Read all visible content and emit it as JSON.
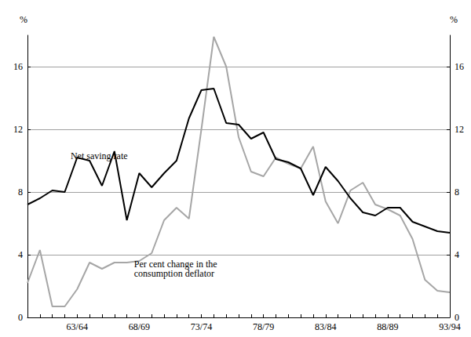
{
  "chart_data": {
    "type": "line",
    "categories": [
      null,
      null,
      null,
      null,
      "63/64",
      null,
      null,
      null,
      null,
      "68/69",
      null,
      null,
      null,
      null,
      "73/74",
      null,
      null,
      null,
      null,
      "78/79",
      null,
      null,
      null,
      null,
      "83/84",
      null,
      null,
      null,
      null,
      "88/89",
      null,
      null,
      null,
      null,
      "93/94"
    ],
    "series": [
      {
        "name": "Net saving rate",
        "color": "#000000",
        "values": [
          7.2,
          7.6,
          8.1,
          8.0,
          10.2,
          10.0,
          8.4,
          10.6,
          6.2,
          9.2,
          8.3,
          9.2,
          10.0,
          12.7,
          14.5,
          14.6,
          12.4,
          12.3,
          11.4,
          11.8,
          10.1,
          9.9,
          9.5,
          7.8,
          9.6,
          8.7,
          7.6,
          6.7,
          6.5,
          7.0,
          7.0,
          6.1,
          5.8,
          5.5,
          5.4
        ]
      },
      {
        "name": "Per cent change in the\nconsumption deflator",
        "color": "#a6a6a6",
        "values": [
          2.2,
          4.3,
          0.7,
          0.7,
          1.8,
          3.5,
          3.1,
          3.5,
          3.5,
          3.6,
          4.1,
          6.2,
          7.0,
          6.3,
          12.0,
          17.9,
          16.0,
          11.5,
          9.3,
          9.0,
          10.2,
          9.8,
          9.5,
          10.9,
          7.4,
          6.0,
          8.1,
          8.6,
          7.2,
          6.9,
          6.5,
          5.0,
          2.4,
          1.7,
          1.6
        ]
      }
    ],
    "y_label": "%",
    "ylim": [
      0,
      18
    ],
    "yticks": [
      0,
      4,
      8,
      12,
      16
    ],
    "y2_label": "%",
    "y2lim": [
      0,
      18
    ],
    "y2ticks": [
      0,
      4,
      8,
      12,
      16
    ],
    "grid": true
  }
}
